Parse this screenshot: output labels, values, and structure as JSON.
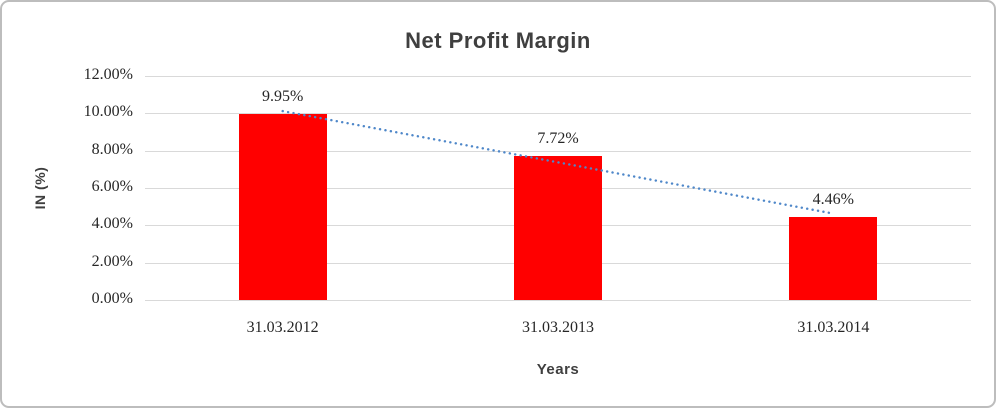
{
  "chart": {
    "title": "Net Profit Margin",
    "x_axis_title": "Years",
    "y_axis_title": "IN (%)"
  },
  "chart_data": {
    "type": "bar",
    "title": "Net Profit Margin",
    "xlabel": "Years",
    "ylabel": "IN (%)",
    "categories": [
      "31.03.2012",
      "31.03.2013",
      "31.03.2014"
    ],
    "values": [
      9.95,
      7.72,
      4.46
    ],
    "data_labels": [
      "9.95%",
      "7.72%",
      "4.46%"
    ],
    "y_ticks": [
      {
        "value": 0,
        "label": "0.00%"
      },
      {
        "value": 2,
        "label": "2.00%"
      },
      {
        "value": 4,
        "label": "4.00%"
      },
      {
        "value": 6,
        "label": "6.00%"
      },
      {
        "value": 8,
        "label": "8.00%"
      },
      {
        "value": 10,
        "label": "10.00%"
      },
      {
        "value": 12,
        "label": "12.00%"
      }
    ],
    "ylim": [
      0,
      12
    ],
    "grid": true,
    "legend": false,
    "bar_color": "#FF0000",
    "gridline_color": "#D9D9D9",
    "text_color": "#262626",
    "title_color": "#3F3F3F",
    "trendline": {
      "type": "linear",
      "style": "dotted",
      "color": "#4E87C9",
      "start_value": 10.12,
      "end_value": 4.63
    }
  }
}
